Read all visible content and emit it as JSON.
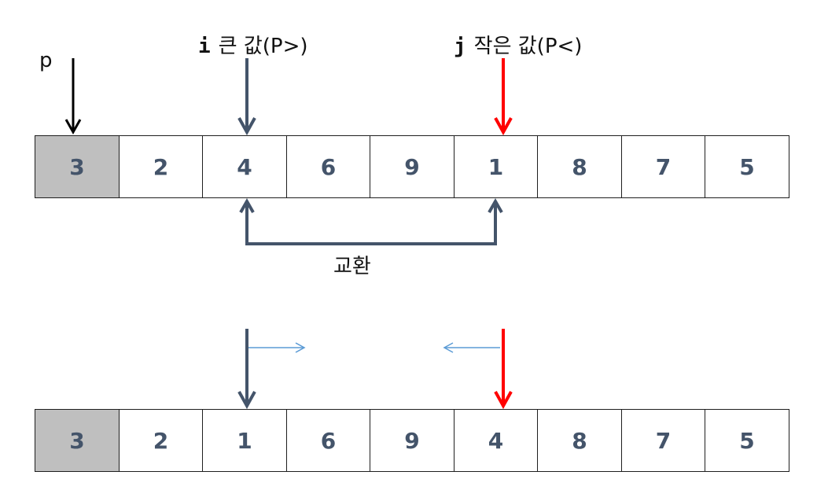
{
  "labels": {
    "pivot": "p",
    "i_var": "i",
    "i_desc": "큰  값(P>)",
    "j_var": "j",
    "j_desc": "작은 값(P<)",
    "swap": "교환"
  },
  "arrays": {
    "before": [
      "3",
      "2",
      "4",
      "6",
      "9",
      "1",
      "8",
      "7",
      "5"
    ],
    "after": [
      "3",
      "2",
      "1",
      "6",
      "9",
      "4",
      "8",
      "7",
      "5"
    ]
  },
  "colors": {
    "i_arrow": "#44546a",
    "j_arrow": "#ff0000",
    "p_arrow": "#000000",
    "move_arrow": "#5b9bd5",
    "pivot_fill": "#bfbfbf",
    "number_text": "#44546a"
  }
}
